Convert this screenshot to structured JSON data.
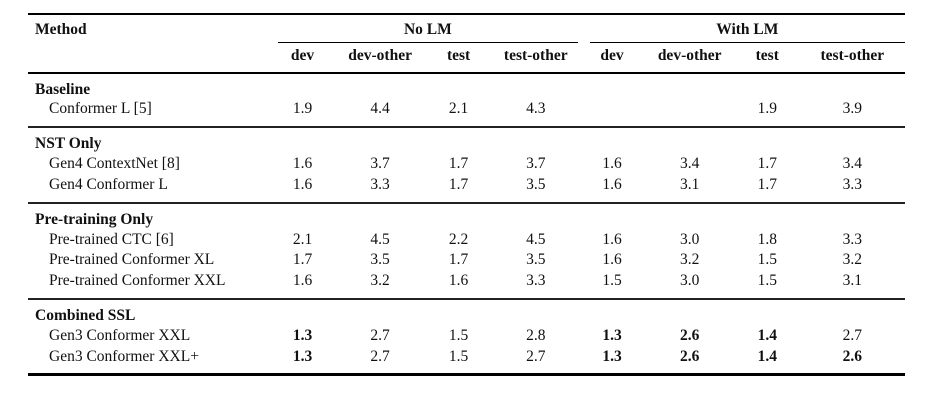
{
  "table": {
    "method_header": "Method",
    "groups": [
      {
        "label": "No LM",
        "cols": [
          "dev",
          "dev-other",
          "test",
          "test-other"
        ]
      },
      {
        "label": "With LM",
        "cols": [
          "dev",
          "dev-other",
          "test",
          "test-other"
        ]
      }
    ],
    "sections": [
      {
        "title": "Baseline",
        "rows": [
          {
            "method": "Conformer L [5]",
            "cells": [
              {
                "t": "1.9"
              },
              {
                "t": "4.4"
              },
              {
                "t": "2.1"
              },
              {
                "t": "4.3"
              },
              {
                "t": ""
              },
              {
                "t": ""
              },
              {
                "t": "1.9"
              },
              {
                "t": "3.9"
              }
            ]
          }
        ]
      },
      {
        "title": "NST Only",
        "rows": [
          {
            "method": "Gen4 ContextNet [8]",
            "cells": [
              {
                "t": "1.6"
              },
              {
                "t": "3.7"
              },
              {
                "t": "1.7"
              },
              {
                "t": "3.7"
              },
              {
                "t": "1.6"
              },
              {
                "t": "3.4"
              },
              {
                "t": "1.7"
              },
              {
                "t": "3.4"
              }
            ]
          },
          {
            "method": "Gen4 Conformer L",
            "cells": [
              {
                "t": "1.6"
              },
              {
                "t": "3.3"
              },
              {
                "t": "1.7"
              },
              {
                "t": "3.5"
              },
              {
                "t": "1.6"
              },
              {
                "t": "3.1"
              },
              {
                "t": "1.7"
              },
              {
                "t": "3.3"
              }
            ]
          }
        ]
      },
      {
        "title": "Pre-training Only",
        "rows": [
          {
            "method": "Pre-trained CTC [6]",
            "cells": [
              {
                "t": "2.1"
              },
              {
                "t": "4.5"
              },
              {
                "t": "2.2"
              },
              {
                "t": "4.5"
              },
              {
                "t": "1.6"
              },
              {
                "t": "3.0"
              },
              {
                "t": "1.8"
              },
              {
                "t": "3.3"
              }
            ]
          },
          {
            "method": "Pre-trained Conformer XL",
            "cells": [
              {
                "t": "1.7"
              },
              {
                "t": "3.5"
              },
              {
                "t": "1.7"
              },
              {
                "t": "3.5"
              },
              {
                "t": "1.6"
              },
              {
                "t": "3.2"
              },
              {
                "t": "1.5"
              },
              {
                "t": "3.2"
              }
            ]
          },
          {
            "method": "Pre-trained Conformer XXL",
            "cells": [
              {
                "t": "1.6"
              },
              {
                "t": "3.2"
              },
              {
                "t": "1.6"
              },
              {
                "t": "3.3"
              },
              {
                "t": "1.5"
              },
              {
                "t": "3.0"
              },
              {
                "t": "1.5"
              },
              {
                "t": "3.1"
              }
            ]
          }
        ]
      },
      {
        "title": "Combined SSL",
        "rows": [
          {
            "method": "Gen3 Conformer XXL",
            "cells": [
              {
                "t": "1.3",
                "b": true
              },
              {
                "t": "2.7"
              },
              {
                "t": "1.5"
              },
              {
                "t": "2.8"
              },
              {
                "t": "1.3",
                "b": true
              },
              {
                "t": "2.6",
                "b": true
              },
              {
                "t": "1.4",
                "b": true
              },
              {
                "t": "2.7"
              }
            ]
          },
          {
            "method": "Gen3 Conformer XXL+",
            "cells": [
              {
                "t": "1.3",
                "b": true
              },
              {
                "t": "2.7"
              },
              {
                "t": "1.5"
              },
              {
                "t": "2.7"
              },
              {
                "t": "1.3",
                "b": true
              },
              {
                "t": "2.6",
                "b": true
              },
              {
                "t": "1.4",
                "b": true
              },
              {
                "t": "2.6",
                "b": true
              }
            ]
          }
        ]
      }
    ]
  },
  "colors": {
    "text": "#111111",
    "rule": "#000000"
  }
}
